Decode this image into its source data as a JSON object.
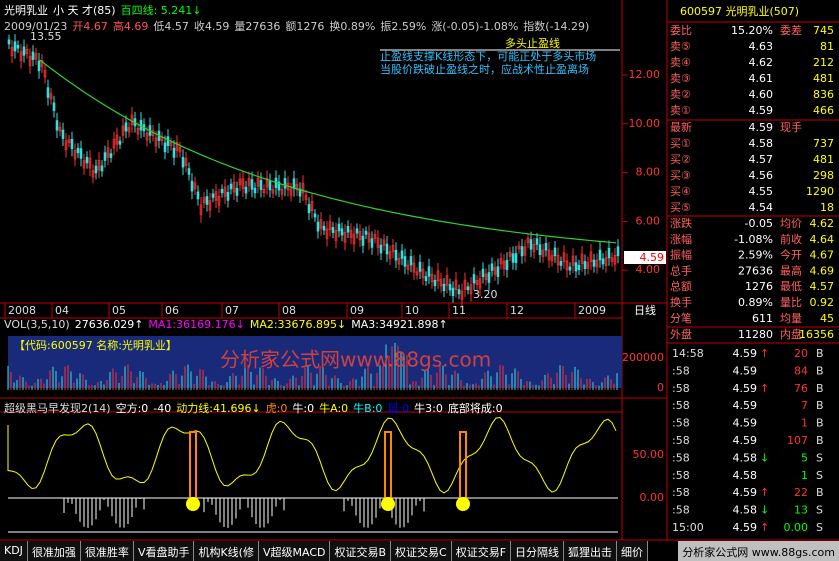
{
  "header": {
    "name": "光明乳业",
    "mode": "小 天 才(85)",
    "ma": "百四线: 5.241↓",
    "date": "2009/01/23",
    "open": "开4.67",
    "high": "高4.69",
    "low": "低4.57",
    "close": "收4.59",
    "vol": "量27636",
    "amount": "额1276",
    "turnover": "换0.89%",
    "amp": "振2.59%",
    "change": "涨(-0.05)-1.08%",
    "index": "指数(-14.29)"
  },
  "annotations": {
    "high_mark": "13.55",
    "low_mark": "3.20",
    "title": "多头止盈线",
    "line1": "止盈线支撑K线形态下，可能正处于多头市场",
    "line2": "当股价跌破止盈线之时，应战术性止盈离场"
  },
  "price_axis": [
    "12.00",
    "10.00",
    "8.00",
    "6.00",
    "4.00"
  ],
  "last_price": "4.59",
  "date_axis": [
    "2008",
    "04",
    "05",
    "06",
    "07",
    "08",
    "09",
    "10",
    "11",
    "12",
    "2009"
  ],
  "period": "日线",
  "vol_header": [
    "VOL(3,5,10)",
    "27636.029↑",
    "MA1:36169.176↓",
    "MA2:33676.895↓",
    "MA3:34921.898↑"
  ],
  "vol_axis": [
    "200000",
    "0"
  ],
  "watermark": "分析家公式网www.88gs.com",
  "code_box": "【代码:600597 名称:光明乳业】",
  "ind_header": [
    "超级黑马早发现2(14)",
    "空方:0",
    "-40",
    "动力线:41.696↓",
    "虎:0",
    "牛:0",
    "牛A:0",
    "牛B:0",
    "鼠:0",
    "牛3:0",
    "底部将成:0"
  ],
  "ind_axis": [
    "50.00",
    "0.00"
  ],
  "quote": {
    "title": "600597 光明乳业(507)",
    "ratio": [
      "委比",
      "15.20%",
      "委差",
      "745"
    ],
    "sells": [
      [
        "卖⑤",
        "4.63",
        "81"
      ],
      [
        "卖④",
        "4.62",
        "212"
      ],
      [
        "卖③",
        "4.61",
        "481"
      ],
      [
        "卖②",
        "4.60",
        "836"
      ],
      [
        "卖①",
        "4.59",
        "466"
      ]
    ],
    "latest": [
      "最新",
      "4.59",
      "现手"
    ],
    "buys": [
      [
        "买①",
        "4.58",
        "737"
      ],
      [
        "买②",
        "4.57",
        "481"
      ],
      [
        "买③",
        "4.56",
        "298"
      ],
      [
        "买④",
        "4.55",
        "1290"
      ],
      [
        "买⑤",
        "4.54",
        "18"
      ]
    ],
    "stats": [
      [
        "涨跌",
        "-0.05",
        "均价",
        "4.62"
      ],
      [
        "涨幅",
        "-1.08%",
        "前收",
        "4.64"
      ],
      [
        "振幅",
        "2.59%",
        "今开",
        "4.67"
      ],
      [
        "总手",
        "27636",
        "最高",
        "4.69"
      ],
      [
        "总额",
        "1276",
        "最低",
        "4.57"
      ],
      [
        "换手",
        "0.89%",
        "量比",
        "0.92"
      ],
      [
        "分笔",
        "611",
        "均量",
        "45"
      ]
    ],
    "outer": [
      "外盘",
      "11280",
      "内盘",
      "16356"
    ]
  },
  "trades": [
    {
      "time": "14:58",
      "price": "4.59",
      "arrow": "↑",
      "vol": "20",
      "side": "B"
    },
    {
      "time": ":58",
      "price": "4.59",
      "vol": "84",
      "side": "B"
    },
    {
      "time": ":58",
      "price": "4.59",
      "arrow": "↑",
      "vol": "76",
      "side": "B"
    },
    {
      "time": ":58",
      "price": "4.59",
      "vol": "7",
      "side": "B"
    },
    {
      "time": ":58",
      "price": "4.59",
      "vol": "1",
      "side": "B"
    },
    {
      "time": ":58",
      "price": "4.59",
      "vol": "107",
      "side": "B"
    },
    {
      "time": ":58",
      "price": "4.58",
      "arrow": "↓",
      "vol": "5",
      "side": "S"
    },
    {
      "time": ":58",
      "price": "4.58",
      "vol": "1",
      "side": "S"
    },
    {
      "time": ":58",
      "price": "4.59",
      "arrow": "↑",
      "vol": "22",
      "side": "B"
    },
    {
      "time": ":58",
      "price": "4.58",
      "arrow": "↓",
      "vol": "13",
      "side": "S"
    },
    {
      "time": "15:00",
      "price": "4.59",
      "arrow": "↑",
      "vol": "0.00",
      "side": "S"
    }
  ],
  "tabs": [
    "KDJ",
    "很准加强",
    "很准胜率",
    "V看盘助手",
    "机构K线(修",
    "V超级MACD",
    "权证交易B",
    "权证交易C",
    "权证交易F",
    "日分隔线",
    "狐狸出击",
    "细价"
  ],
  "footer": "分析家公式网 www.88gs.com"
}
